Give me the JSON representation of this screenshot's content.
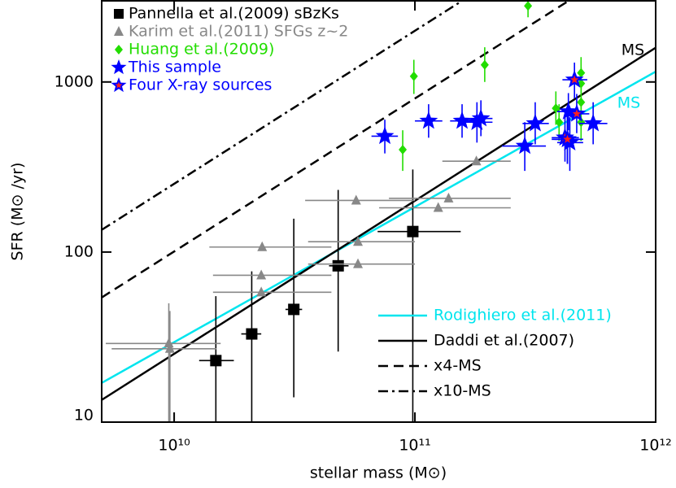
{
  "chart_data": {
    "type": "scatter",
    "xlabel": "stellar mass (M⊙)",
    "ylabel": "SFR (M⊙ /yr)",
    "xscale": "log",
    "yscale": "log",
    "xlim": [
      5000000000.0,
      1000000000000.0
    ],
    "ylim": [
      10,
      3000
    ],
    "xticks": [
      {
        "value": 10000000000.0,
        "label": "10¹⁰"
      },
      {
        "value": 100000000000.0,
        "label": "10¹¹"
      },
      {
        "value": 1000000000000.0,
        "label": "10¹²"
      }
    ],
    "yticks": [
      10,
      100,
      1000
    ],
    "annotations": [
      {
        "text": "MS",
        "color": "#000000"
      },
      {
        "text": "MS",
        "color": "#00e5ee"
      }
    ],
    "series": [
      {
        "name": "Pannella et al.(2009) sBzKs",
        "kind": "points",
        "marker": "square",
        "color": "#000000",
        "legend": "upper left",
        "x": [
          14900000000.0,
          21000000000.0,
          31400000000.0,
          48000000000.0,
          98000000000.0
        ],
        "values": [
          23,
          33,
          46,
          83,
          132
        ],
        "x_low": [
          12700000000.0,
          19000000000.0,
          29000000000.0,
          44000000000.0,
          70000000000.0
        ],
        "x_high": [
          17700000000.0,
          23000000000.0,
          34000000000.0,
          53000000000.0,
          155000000000.0
        ],
        "y_low": [
          10,
          10,
          14,
          26,
          10
        ],
        "y_high": [
          55,
          77,
          157,
          232,
          306
        ]
      },
      {
        "name": "Karim et al.(2011) SFGs z~2",
        "kind": "points",
        "marker": "triangle",
        "color": "#888888",
        "legend": "upper left",
        "x": [
          9500000000.0,
          9600000000.0,
          23200000000.0,
          23000000000.0,
          23000000000.0,
          57000000000.0,
          58000000000.0,
          58000000000.0,
          125000000000.0,
          138000000000.0,
          180000000000.0
        ],
        "values": [
          29,
          27,
          107,
          73,
          58,
          201,
          115,
          85,
          182,
          207,
          342
        ],
        "x_low": [
          5200000000.0,
          5500000000.0,
          14000000000.0,
          14500000000.0,
          14500000000.0,
          35000000000.0,
          36000000000.0,
          36000000000.0,
          71000000000.0,
          78000000000.0,
          130000000000.0
        ],
        "x_high": [
          15600000000.0,
          15000000000.0,
          45000000000.0,
          45000000000.0,
          45000000000.0,
          100000000000.0,
          100000000000.0,
          100000000000.0,
          250000000000.0,
          250000000000.0,
          250000000000.0
        ],
        "y_low": [
          10,
          10,
          null,
          null,
          null,
          null,
          null,
          null,
          null,
          null,
          null
        ],
        "y_high": [
          50,
          45,
          null,
          null,
          null,
          null,
          null,
          null,
          null,
          null,
          null
        ]
      },
      {
        "name": "Huang et al.(2009)",
        "kind": "points",
        "marker": "diamond",
        "color": "#22dd00",
        "legend": "upper left",
        "x": [
          295000000000.0,
          99000000000.0,
          195000000000.0,
          89000000000.0,
          385000000000.0,
          397000000000.0,
          490000000000.0,
          490000000000.0,
          490000000000.0,
          490000000000.0
        ],
        "values": [
          2800,
          1080,
          1260,
          400,
          700,
          580,
          1130,
          980,
          760,
          580
        ],
        "y_low": [
          2400,
          850,
          1000,
          300,
          560,
          450,
          900,
          780,
          600,
          450
        ],
        "y_high": [
          3000,
          1350,
          1600,
          520,
          880,
          740,
          1400,
          1220,
          950,
          740
        ]
      },
      {
        "name": "This sample",
        "kind": "points",
        "marker": "star",
        "color": "#0000ff",
        "legend": "upper left",
        "x": [
          75000000000.0,
          114000000000.0,
          157000000000.0,
          181000000000.0,
          188000000000.0,
          286000000000.0,
          316000000000.0,
          434000000000.0,
          430000000000.0,
          440000000000.0,
          550000000000.0
        ],
        "values": [
          480,
          590,
          590,
          580,
          610,
          420,
          570,
          670,
          460,
          440,
          570
        ],
        "x_low": [
          66000000000.0,
          100000000000.0,
          140000000000.0,
          160000000000.0,
          170000000000.0,
          230000000000.0,
          280000000000.0,
          390000000000.0,
          370000000000.0,
          390000000000.0,
          480000000000.0
        ],
        "x_high": [
          85000000000.0,
          130000000000.0,
          175000000000.0,
          210000000000.0,
          210000000000.0,
          350000000000.0,
          360000000000.0,
          490000000000.0,
          500000000000.0,
          500000000000.0,
          630000000000.0
        ],
        "y_low": [
          380,
          470,
          470,
          440,
          480,
          300,
          430,
          520,
          330,
          300,
          430
        ],
        "y_high": [
          600,
          740,
          740,
          760,
          780,
          580,
          760,
          860,
          640,
          620,
          760
        ]
      },
      {
        "name": "Four X-ray sources",
        "kind": "points",
        "marker": "star-red",
        "color": "#0000ff",
        "inner_color": "#ff2020",
        "legend": "upper left",
        "x": [
          460000000000.0,
          470000000000.0,
          420000000000.0,
          430000000000.0
        ],
        "values": [
          1030,
          650,
          470,
          460
        ],
        "x_low": [
          410000000000.0,
          420000000000.0,
          370000000000.0,
          380000000000.0
        ],
        "x_high": [
          520000000000.0,
          530000000000.0,
          480000000000.0,
          490000000000.0
        ],
        "y_low": [
          800,
          500,
          340,
          330
        ],
        "y_high": [
          1300,
          850,
          640,
          630
        ]
      },
      {
        "name": "Rodighiero et al.(2011)",
        "kind": "line",
        "dash": "solid",
        "color": "#00e5ee",
        "legend": "lower right",
        "x": [
          5000000000.0,
          1000000000000.0
        ],
        "values": [
          17,
          1150
        ]
      },
      {
        "name": "Daddi et al.(2007)",
        "kind": "line",
        "dash": "solid",
        "color": "#000000",
        "legend": "lower right",
        "x": [
          5000000000.0,
          1000000000000.0
        ],
        "values": [
          13.5,
          1589
        ]
      },
      {
        "name": "x4-MS",
        "kind": "line",
        "dash": "dashed",
        "color": "#000000",
        "legend": "lower right",
        "x": [
          5000000000.0,
          435000000000.0
        ],
        "values": [
          54,
          3000
        ]
      },
      {
        "name": "x10-MS",
        "kind": "line",
        "dash": "dashdot",
        "color": "#000000",
        "legend": "lower right",
        "x": [
          5000000000.0,
          157000000000.0
        ],
        "values": [
          135,
          3000
        ]
      }
    ]
  }
}
